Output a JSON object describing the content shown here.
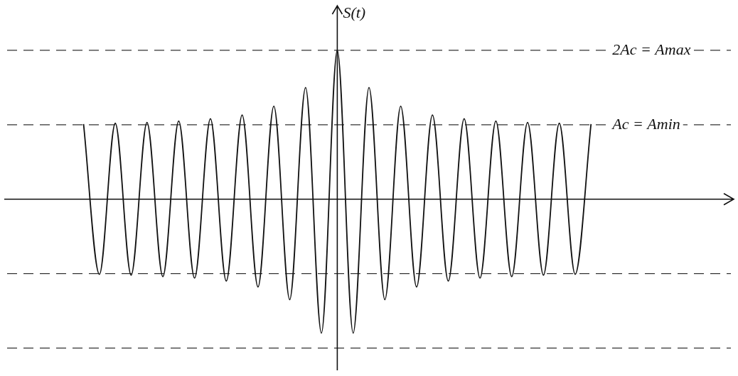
{
  "chart_data": {
    "type": "line",
    "y_label": "S(t)",
    "x": [
      -8,
      -7.5,
      -7,
      -6.5,
      -6,
      -5.5,
      -5,
      -4.5,
      -4,
      -3.5,
      -3,
      -2.5,
      -2,
      -1.5,
      -1,
      -0.5,
      0,
      0.5,
      1,
      1.5,
      2,
      2.5,
      3,
      3.5,
      4,
      4.5,
      5,
      5.5,
      6,
      6.5,
      7,
      7.5,
      8
    ],
    "values": [
      1.01,
      -1.01,
      1.02,
      -1.02,
      1.03,
      -1.04,
      1.05,
      -1.06,
      1.08,
      -1.1,
      1.13,
      -1.18,
      1.25,
      -1.35,
      1.5,
      -1.8,
      2,
      -1.8,
      1.5,
      -1.35,
      1.25,
      -1.18,
      1.13,
      -1.1,
      1.08,
      -1.06,
      1.05,
      -1.04,
      1.03,
      -1.02,
      1.02,
      -1.01,
      1.01
    ],
    "color": "#111111",
    "xlim": [
      -10.5,
      12.5
    ],
    "ylim": [
      -2.3,
      2.6
    ],
    "tick_labels": false,
    "grid": false,
    "hlines": [
      2,
      1,
      -1,
      -2
    ],
    "annotations": [
      {
        "text": "2Ac = Amax",
        "y": 2
      },
      {
        "text": "Ac = Amin",
        "y": 1
      }
    ]
  }
}
